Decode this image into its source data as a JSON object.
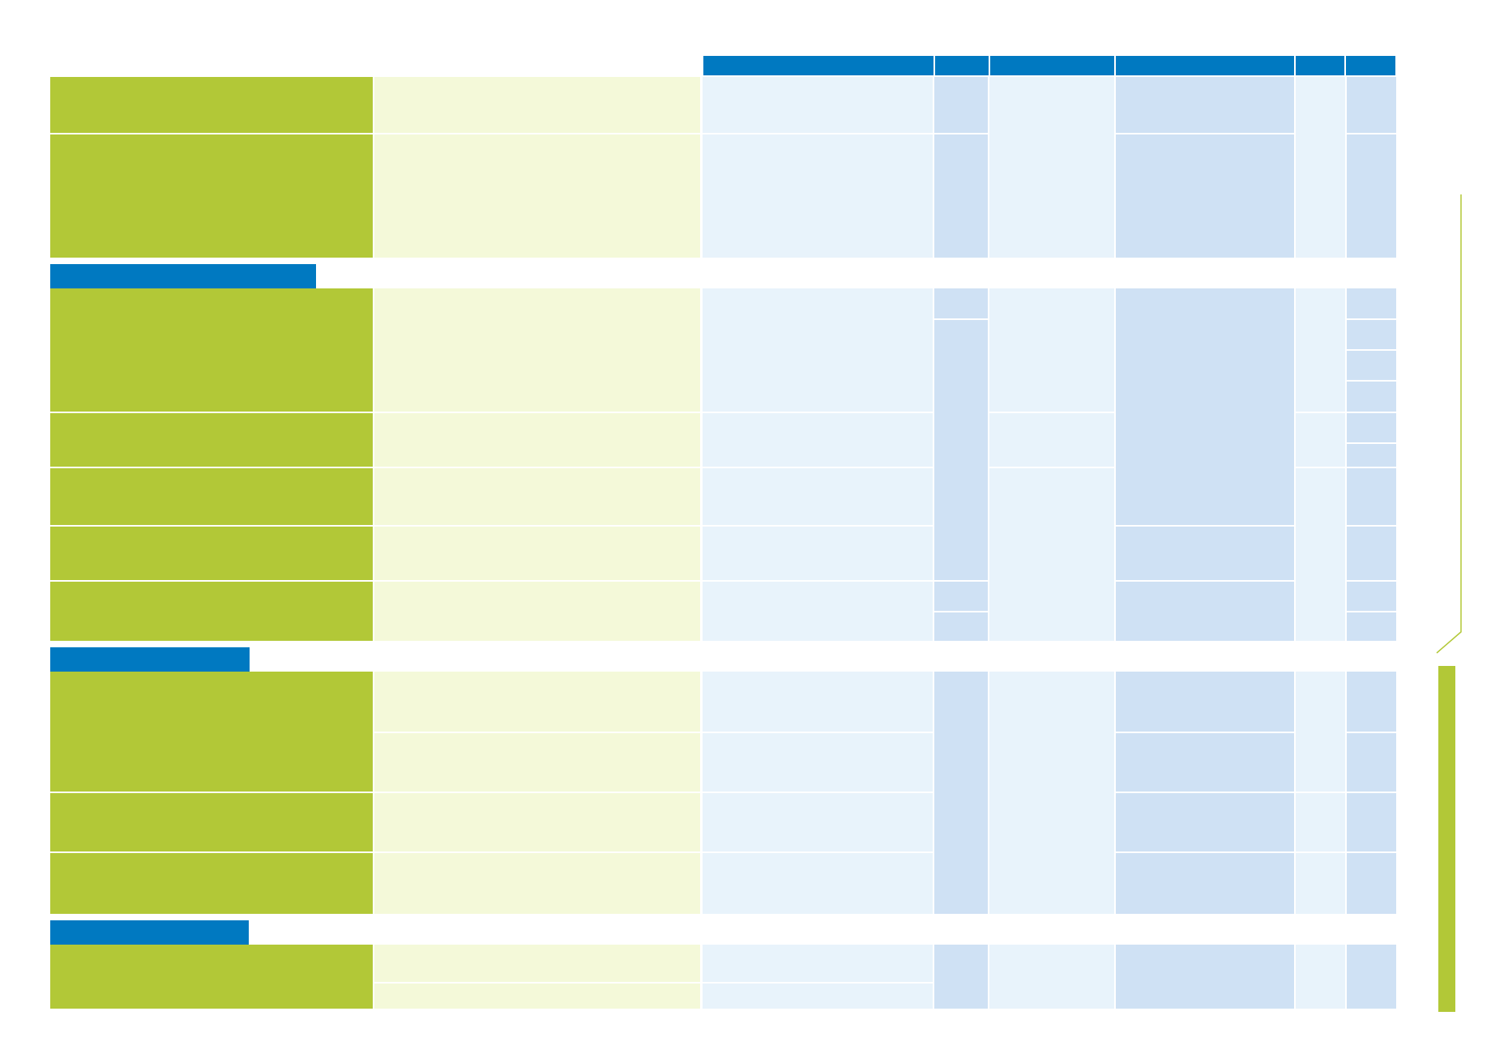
{
  "colors": {
    "label_green": "#b2c837",
    "description_green": "#f4f9d9",
    "cell_light_blue": "#e8f3fb",
    "cell_mid_blue": "#cfe1f4",
    "header_blue": "#0079c1"
  },
  "header": {
    "columns": [
      "",
      "",
      "",
      "",
      "",
      ""
    ]
  },
  "sections": [
    {
      "title": ""
    },
    {
      "title": ""
    },
    {
      "title": ""
    }
  ]
}
